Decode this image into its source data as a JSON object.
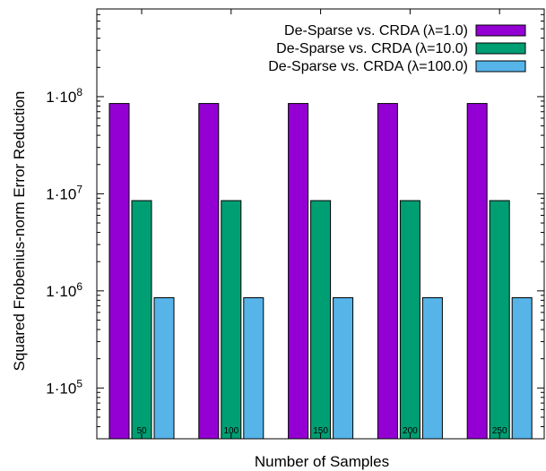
{
  "chart_data": {
    "type": "bar",
    "title": "",
    "xlabel": "Number of Samples",
    "ylabel": "Squared Frobenius-norm Error Reduction",
    "categories": [
      "50",
      "100",
      "150",
      "200",
      "250"
    ],
    "series": [
      {
        "name": "De-Sparse vs. CRDA (λ=1.0)",
        "color": "#9400d3",
        "values": [
          85000000,
          85000000,
          85000000,
          85000000,
          85000000
        ]
      },
      {
        "name": "De-Sparse vs. CRDA (λ=10.0)",
        "color": "#009e73",
        "values": [
          8500000,
          8500000,
          8500000,
          8500000,
          8500000
        ]
      },
      {
        "name": "De-Sparse vs. CRDA (λ=100.0)",
        "color": "#56b4e9",
        "values": [
          850000,
          850000,
          850000,
          850000,
          850000
        ]
      }
    ],
    "yscale": "log",
    "ylim": [
      30000,
      800000000
    ],
    "yticks": [
      {
        "value": 100000,
        "label": "1·10",
        "exp": "5"
      },
      {
        "value": 1000000,
        "label": "1·10",
        "exp": "6"
      },
      {
        "value": 10000000,
        "label": "1·10",
        "exp": "7"
      },
      {
        "value": 100000000,
        "label": "1·10",
        "exp": "8"
      }
    ],
    "legend_position": "top-right",
    "grid": false
  }
}
